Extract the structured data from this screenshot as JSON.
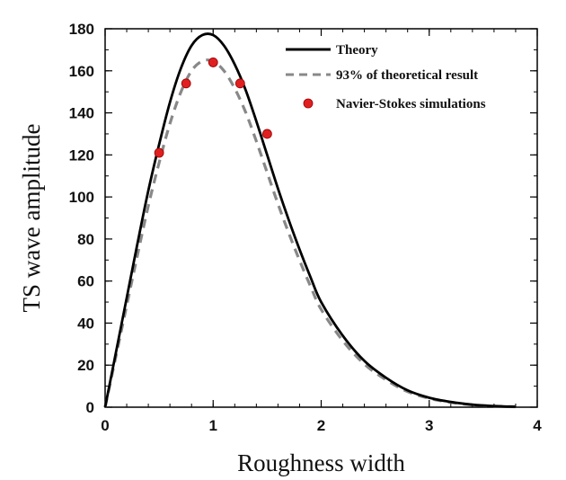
{
  "chart_data": {
    "type": "line",
    "title": "",
    "xlabel": "Roughness width",
    "ylabel": "TS wave amplitude",
    "xlim": [
      0,
      4
    ],
    "ylim": [
      0,
      180
    ],
    "xticks": [
      0,
      1,
      2,
      3,
      4
    ],
    "yticks": [
      0,
      20,
      40,
      60,
      80,
      100,
      120,
      140,
      160,
      180
    ],
    "legend_position": "top-right",
    "grid": false,
    "series": [
      {
        "name": "Theory",
        "style": "solid",
        "color": "#000000",
        "x": [
          0,
          0.1,
          0.2,
          0.3,
          0.4,
          0.5,
          0.6,
          0.7,
          0.8,
          0.9,
          1.0,
          1.1,
          1.2,
          1.3,
          1.4,
          1.5,
          1.6,
          1.7,
          1.8,
          1.9,
          2.0,
          2.2,
          2.4,
          2.6,
          2.8,
          3.0,
          3.2,
          3.4,
          3.6,
          3.8
        ],
        "y": [
          0,
          26,
          52,
          78,
          103,
          125,
          145,
          161,
          172,
          177,
          177,
          172,
          163,
          151,
          136,
          120,
          104,
          89,
          75,
          62,
          50,
          34,
          22,
          14,
          8,
          4.5,
          2.5,
          1.2,
          0.5,
          0.2
        ]
      },
      {
        "name": "93% of theoretical result",
        "style": "dashed",
        "color": "#888888",
        "x": [
          0,
          0.1,
          0.2,
          0.3,
          0.4,
          0.5,
          0.6,
          0.7,
          0.8,
          0.9,
          1.0,
          1.1,
          1.2,
          1.3,
          1.4,
          1.5,
          1.6,
          1.7,
          1.8,
          1.9,
          2.0,
          2.2,
          2.4,
          2.6,
          2.8,
          3.0,
          3.2,
          3.4,
          3.6,
          3.8
        ],
        "y": [
          0,
          24.2,
          48.4,
          72.5,
          95.8,
          116.3,
          134.9,
          149.7,
          160,
          164.6,
          164.6,
          160,
          151.6,
          140.4,
          126.5,
          111.6,
          96.7,
          82.8,
          69.8,
          57.7,
          46.5,
          31.6,
          20.5,
          13,
          7.4,
          4.2,
          2.3,
          1.1,
          0.5,
          0.2
        ]
      },
      {
        "name": "Navier-Stokes simulations",
        "style": "markers",
        "color": "#e02020",
        "x": [
          0.5,
          0.75,
          1.0,
          1.25,
          1.5
        ],
        "y": [
          121,
          154,
          164,
          154,
          130
        ]
      }
    ]
  }
}
